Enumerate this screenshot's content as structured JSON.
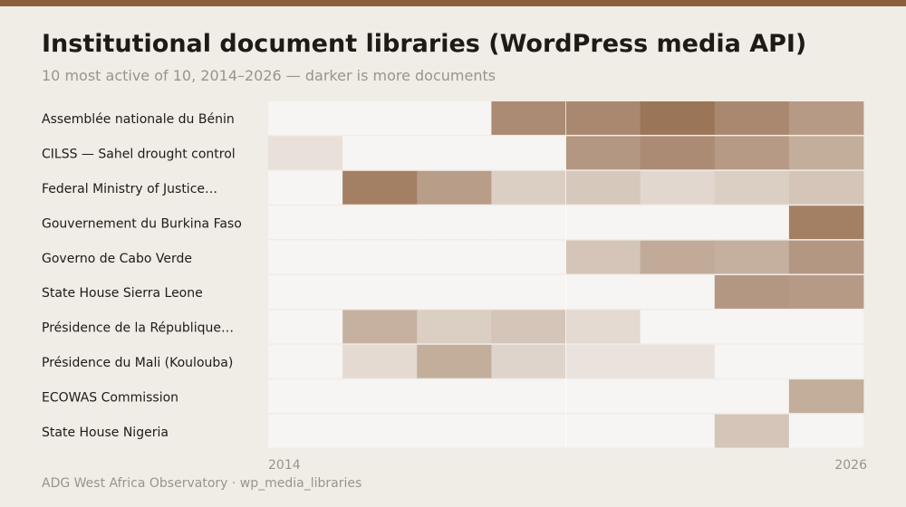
{
  "title": "Institutional document libraries (WordPress media API)",
  "subtitle": "10 most active of 10, 2014–2026 — darker is more documents",
  "footer": "ADG West Africa Observatory · wp_media_libraries",
  "colors": {
    "accent": "#8b5e3c",
    "cell_base": "#f7f5f3",
    "text": "#1e1a16",
    "muted": "#9a948c"
  },
  "chart_data": {
    "type": "heatmap",
    "x_start_label": "2014",
    "x_end_label": "2026",
    "columns": 8,
    "intensity_scale": [
      0,
      1
    ],
    "rows": [
      {
        "label": "Assemblée nationale du Bénin",
        "values": [
          0,
          0,
          0,
          0.7,
          0.72,
          0.85,
          0.72,
          0.6
        ]
      },
      {
        "label": "CILSS — Sahel drought control",
        "values": [
          0.14,
          0,
          0,
          0,
          0.62,
          0.7,
          0.6,
          0.48
        ]
      },
      {
        "label": "Federal Ministry of Justice…",
        "values": [
          0,
          0.78,
          0.58,
          0.26,
          0.3,
          0.2,
          0.26,
          0.32
        ]
      },
      {
        "label": "Gouvernement du Burkina Faso",
        "values": [
          0,
          0,
          0,
          0,
          0,
          0,
          0,
          0.78
        ]
      },
      {
        "label": "Governo de Cabo Verde",
        "values": [
          0,
          0,
          0,
          0,
          0.32,
          0.5,
          0.46,
          0.62
        ]
      },
      {
        "label": "State House Sierra Leone",
        "values": [
          0,
          0,
          0,
          0,
          0,
          0,
          0.62,
          0.6
        ]
      },
      {
        "label": "Présidence de la République…",
        "values": [
          0,
          0.45,
          0.26,
          0.32,
          0.18,
          0,
          0,
          0
        ]
      },
      {
        "label": "Présidence du Mali (Koulouba)",
        "values": [
          0,
          0.18,
          0.48,
          0.22,
          0.12,
          0.12,
          0,
          0
        ]
      },
      {
        "label": "ECOWAS Commission",
        "values": [
          0,
          0,
          0,
          0,
          0,
          0,
          0,
          0.48
        ]
      },
      {
        "label": "State House Nigeria",
        "values": [
          0,
          0,
          0,
          0,
          0,
          0,
          0.32,
          0
        ]
      }
    ]
  }
}
